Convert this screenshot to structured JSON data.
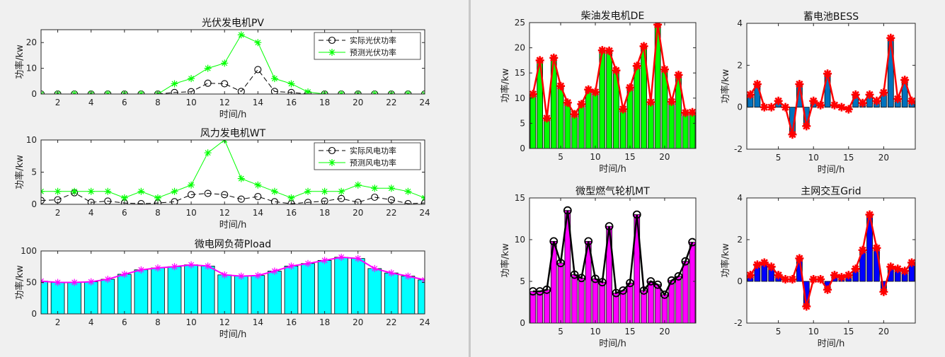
{
  "colors": {
    "background": "#f0f0f0",
    "divider": "#c8c8c8",
    "pv_actual": "#000000",
    "pv_forecast": "#00ff00",
    "load_bar": "#00ffff",
    "load_line": "#ff00ff",
    "de_bar": "#00ff00",
    "de_line": "#ff0000",
    "bess_bar": "#0072bd",
    "mt_bar": "#ff00ff",
    "mt_line": "#000000",
    "grid_bar": "#0000ff"
  },
  "chart_data": [
    {
      "id": "pv",
      "type": "line",
      "title": "光伏发电机PV",
      "xlabel": "时间/h",
      "ylabel": "功率/kw",
      "xlim": [
        1,
        24
      ],
      "ylim": [
        0,
        25
      ],
      "xticks": [
        2,
        4,
        6,
        8,
        10,
        12,
        14,
        16,
        18,
        20,
        22,
        24
      ],
      "yticks": [
        0,
        10,
        20
      ],
      "grid": false,
      "legend": "top-right",
      "x": [
        1,
        2,
        3,
        4,
        5,
        6,
        7,
        8,
        9,
        10,
        11,
        12,
        13,
        14,
        15,
        16,
        17,
        18,
        19,
        20,
        21,
        22,
        23,
        24
      ],
      "series": [
        {
          "name": "实际光伏功率",
          "marker": "circle",
          "dash": true,
          "color": "#000000",
          "values": [
            0,
            0,
            0,
            0,
            0,
            0,
            0,
            0,
            0.6,
            0.9,
            4.2,
            4.0,
            1.0,
            9.5,
            1.0,
            0.6,
            0,
            0,
            0,
            0,
            0,
            0,
            0,
            0
          ]
        },
        {
          "name": "预测光伏功率",
          "marker": "star",
          "dash": false,
          "color": "#00ff00",
          "values": [
            0,
            0,
            0,
            0,
            0,
            0,
            0,
            0,
            4,
            6,
            10,
            12,
            23,
            20,
            6,
            4,
            0.8,
            0,
            0,
            0,
            0,
            0,
            0,
            0
          ]
        }
      ]
    },
    {
      "id": "wt",
      "type": "line",
      "title": "风力发电机WT",
      "xlabel": "时间/h",
      "ylabel": "功率/kw",
      "xlim": [
        1,
        24
      ],
      "ylim": [
        0,
        10
      ],
      "xticks": [
        2,
        4,
        6,
        8,
        10,
        12,
        14,
        16,
        18,
        20,
        22,
        24
      ],
      "yticks": [
        0,
        5,
        10
      ],
      "grid": false,
      "legend": "top-right",
      "x": [
        1,
        2,
        3,
        4,
        5,
        6,
        7,
        8,
        9,
        10,
        11,
        12,
        13,
        14,
        15,
        16,
        17,
        18,
        19,
        20,
        21,
        22,
        23,
        24
      ],
      "series": [
        {
          "name": "实际风电功率",
          "marker": "circle",
          "dash": true,
          "color": "#000000",
          "values": [
            0.6,
            0.7,
            1.8,
            0.3,
            0.5,
            0.2,
            0.1,
            0.2,
            0.4,
            1.5,
            1.7,
            1.5,
            0.8,
            1.2,
            0.4,
            0.1,
            0.3,
            0.5,
            0.9,
            0.3,
            1.1,
            0.7,
            0.1,
            0.2
          ]
        },
        {
          "name": "预测风电功率",
          "marker": "star",
          "dash": false,
          "color": "#00ff00",
          "values": [
            2,
            2,
            2,
            2,
            2,
            1,
            2,
            1,
            2,
            3,
            8,
            10,
            4,
            3,
            2,
            1,
            2,
            2,
            2,
            3,
            2.5,
            2.5,
            2,
            1
          ]
        }
      ]
    },
    {
      "id": "load",
      "type": "bar",
      "title": "微电网负荷Pload",
      "xlabel": "时间/h",
      "ylabel": "功率/kw",
      "xlim": [
        1,
        24
      ],
      "ylim": [
        0,
        100
      ],
      "xticks": [
        2,
        4,
        6,
        8,
        10,
        12,
        14,
        16,
        18,
        20,
        22,
        24
      ],
      "yticks": [
        0,
        50,
        100
      ],
      "grid": false,
      "x": [
        1,
        2,
        3,
        4,
        5,
        6,
        7,
        8,
        9,
        10,
        11,
        12,
        13,
        14,
        15,
        16,
        17,
        18,
        19,
        20,
        21,
        22,
        23,
        24
      ],
      "values": [
        52,
        50,
        50,
        51,
        55,
        63,
        70,
        73,
        75,
        78,
        76,
        62,
        60,
        61,
        68,
        76,
        80,
        85,
        90,
        88,
        72,
        65,
        60,
        54
      ],
      "bar_color": "#00ffff",
      "line_color": "#ff00ff",
      "line_marker": "star"
    },
    {
      "id": "de",
      "type": "bar",
      "title": "柴油发电机DE",
      "xlabel": "时间/h",
      "ylabel": "功率/kw",
      "xlim": [
        0.5,
        24.5
      ],
      "ylim": [
        0,
        25
      ],
      "xticks": [
        5,
        10,
        15,
        20
      ],
      "yticks": [
        0,
        5,
        10,
        15,
        20,
        25
      ],
      "grid": false,
      "x": [
        1,
        2,
        3,
        4,
        5,
        6,
        7,
        8,
        9,
        10,
        11,
        12,
        13,
        14,
        15,
        16,
        17,
        18,
        19,
        20,
        21,
        22,
        23,
        24
      ],
      "values": [
        10.8,
        17.5,
        6.0,
        18.0,
        12.4,
        9.1,
        6.8,
        8.8,
        11.7,
        11.2,
        19.5,
        19.4,
        15.5,
        7.8,
        12.1,
        16.4,
        20.3,
        9.2,
        24.6,
        15.7,
        9.3,
        14.6,
        7.1,
        7.2
      ],
      "bar_color": "#00ff00",
      "line_color": "#ff0000",
      "line_marker": "star"
    },
    {
      "id": "bess",
      "type": "bar",
      "title": "蓄电池BESS",
      "xlabel": "时间/h",
      "ylabel": "功率/kw",
      "xlim": [
        0.5,
        24.5
      ],
      "ylim": [
        -2,
        4
      ],
      "xticks": [
        5,
        10,
        15,
        20
      ],
      "yticks": [
        -2,
        0,
        2,
        4
      ],
      "grid": false,
      "x": [
        1,
        2,
        3,
        4,
        5,
        6,
        7,
        8,
        9,
        10,
        11,
        12,
        13,
        14,
        15,
        16,
        17,
        18,
        19,
        20,
        21,
        22,
        23,
        24
      ],
      "values": [
        0.6,
        1.1,
        0.0,
        0.0,
        0.3,
        0.0,
        -1.3,
        1.1,
        -0.9,
        0.3,
        0.1,
        1.6,
        0.1,
        0.0,
        -0.1,
        0.6,
        0.2,
        0.6,
        0.3,
        0.7,
        3.3,
        0.4,
        1.3,
        0.3
      ],
      "bar_color": "#0072bd",
      "line_color": "#ff0000",
      "line_marker": "star"
    },
    {
      "id": "mt",
      "type": "bar",
      "title": "微型燃气轮机MT",
      "xlabel": "时间/h",
      "ylabel": "功率/kw",
      "xlim": [
        0.5,
        24.5
      ],
      "ylim": [
        0,
        15
      ],
      "xticks": [
        5,
        10,
        15,
        20
      ],
      "yticks": [
        0,
        5,
        10,
        15
      ],
      "grid": false,
      "x": [
        1,
        2,
        3,
        4,
        5,
        6,
        7,
        8,
        9,
        10,
        11,
        12,
        13,
        14,
        15,
        16,
        17,
        18,
        19,
        20,
        21,
        22,
        23,
        24
      ],
      "values": [
        3.8,
        3.8,
        4.0,
        9.8,
        7.2,
        13.5,
        5.8,
        5.4,
        9.8,
        5.3,
        4.9,
        11.6,
        3.6,
        3.9,
        4.8,
        13.0,
        3.9,
        5.0,
        4.6,
        3.4,
        5.1,
        5.6,
        7.4,
        9.7
      ],
      "bar_color": "#ff00ff",
      "line_color": "#000000",
      "line_marker": "circle"
    },
    {
      "id": "grid",
      "type": "bar",
      "title": "主网交互Grid",
      "xlabel": "时间/h",
      "ylabel": "功率/kw",
      "xlim": [
        0.5,
        24.5
      ],
      "ylim": [
        -2,
        4
      ],
      "xticks": [
        5,
        10,
        15,
        20
      ],
      "yticks": [
        -2,
        0,
        2,
        4
      ],
      "grid": false,
      "x": [
        1,
        2,
        3,
        4,
        5,
        6,
        7,
        8,
        9,
        10,
        11,
        12,
        13,
        14,
        15,
        16,
        17,
        18,
        19,
        20,
        21,
        22,
        23,
        24
      ],
      "values": [
        0.3,
        0.8,
        0.9,
        0.7,
        0.3,
        0.1,
        0.1,
        1.1,
        -1.2,
        0.1,
        0.1,
        -0.4,
        0.3,
        0.2,
        0.3,
        0.6,
        1.5,
        3.2,
        1.6,
        -0.5,
        0.7,
        0.6,
        0.5,
        0.9
      ],
      "bar_color": "#0000ff",
      "line_color": "#ff0000",
      "line_marker": "star"
    }
  ]
}
